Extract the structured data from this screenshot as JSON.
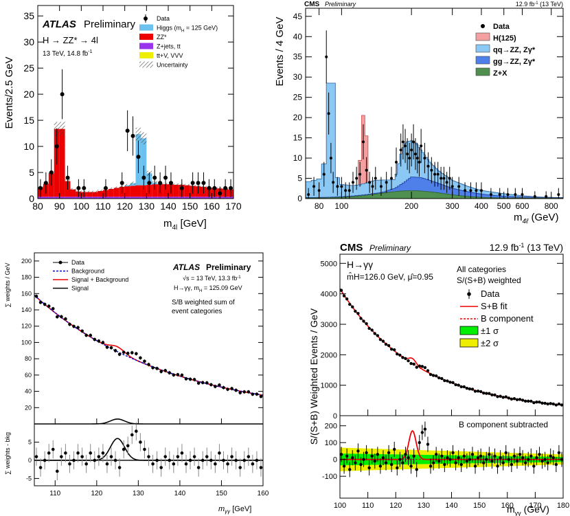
{
  "chart_data": [
    {
      "id": "atlas_4l",
      "type": "bar",
      "experiment": "ATLAS",
      "status": "Preliminary",
      "process": "H → ZZ* → 4l",
      "energy": "13 TeV, 14.8 fb",
      "energy_sup": "-1",
      "xlabel": "m",
      "xlabel_sub": "4l",
      "xlabel_unit": "[GeV]",
      "ylabel": "Events/2.5 GeV",
      "xlim": [
        80,
        170
      ],
      "ylim": [
        0,
        37
      ],
      "xticks": [
        80,
        90,
        100,
        110,
        120,
        130,
        140,
        150,
        160,
        170
      ],
      "yticks": [
        0,
        5,
        10,
        15,
        20,
        25,
        30,
        35
      ],
      "legend": [
        {
          "label": "Data",
          "color": "#000000"
        },
        {
          "label": "Higgs (m",
          "sub": "H",
          "tail": " = 125 GeV)",
          "color": "#6cc1ee"
        },
        {
          "label": "ZZ*",
          "color": "#ee0000"
        },
        {
          "label": "Z+jets, tt",
          "color": "#9933ee"
        },
        {
          "label": "tt+V, VVV",
          "color": "#eeee00"
        },
        {
          "label": "Uncertainty",
          "color": "#555555"
        }
      ],
      "bin_edges_start": 80,
      "bin_width": 2.5,
      "series": [
        {
          "name": "tt+V, VVV",
          "values": [
            0.05,
            0.05,
            0.05,
            0.05,
            0.05,
            0.05,
            0.05,
            0.05,
            0.05,
            0.05,
            0.05,
            0.05,
            0.05,
            0.05,
            0.05,
            0.05,
            0.05,
            0.05,
            0.05,
            0.05,
            0.05,
            0.05,
            0.05,
            0.05,
            0.05,
            0.05,
            0.05,
            0.05,
            0.05,
            0.05,
            0.05,
            0.05,
            0.05,
            0.05,
            0.05,
            0.05
          ]
        },
        {
          "name": "Z+jets, tt",
          "values": [
            0.3,
            0.3,
            0.3,
            0.3,
            0.3,
            0.3,
            0.3,
            0.3,
            0.3,
            0.3,
            0.3,
            0.3,
            0.3,
            0.3,
            0.3,
            0.3,
            0.3,
            0.3,
            0.3,
            0.3,
            0.3,
            0.3,
            0.3,
            0.3,
            0.3,
            0.3,
            0.3,
            0.3,
            0.3,
            0.3,
            0.3,
            0.3,
            0.3,
            0.3,
            0.3,
            0.3
          ]
        },
        {
          "name": "ZZ*",
          "values": [
            1.8,
            2.5,
            4.5,
            13,
            13,
            3,
            1.4,
            1.0,
            0.9,
            0.9,
            0.9,
            1.1,
            1.3,
            1.5,
            1.7,
            1.9,
            2.0,
            2.1,
            2.2,
            2.2,
            2.3,
            2.4,
            2.4,
            2.4,
            2.4,
            2.3,
            2.3,
            2.2,
            2.1,
            2.0,
            1.9,
            1.8,
            1.7,
            1.6,
            1.5,
            1.4
          ]
        },
        {
          "name": "Higgs",
          "values": [
            0,
            0,
            0,
            0,
            0,
            0,
            0,
            0,
            0,
            0,
            0,
            0,
            0,
            0,
            0,
            0,
            0.2,
            0.5,
            9.8,
            9,
            2.2,
            0.3,
            0,
            0,
            0,
            0,
            0,
            0,
            0,
            0,
            0,
            0,
            0,
            0,
            0,
            0
          ]
        }
      ],
      "data": {
        "x": [
          81.25,
          83.75,
          86.25,
          88.75,
          91.25,
          93.75,
          98.75,
          101.25,
          111.25,
          118.75,
          121.25,
          123.75,
          126.25,
          128.75,
          131.25,
          133.75,
          136.25,
          138.75,
          141.25,
          146.25,
          151.25,
          153.75,
          156.25,
          158.75,
          161.25,
          163.75,
          166.25,
          168.75
        ],
        "y": [
          2,
          3,
          5,
          10,
          20,
          4,
          2,
          2,
          2,
          3,
          13,
          12,
          8,
          4,
          3,
          4,
          3,
          4,
          3,
          2,
          3,
          3,
          3,
          2,
          2,
          1,
          2,
          2
        ]
      }
    },
    {
      "id": "cms_4l",
      "type": "bar",
      "experiment": "CMS",
      "status": "Preliminary",
      "lumi": "12.9 fb",
      "lumi_sup": "-1",
      "lumi_tail": " (13 TeV)",
      "xlabel": "m",
      "xlabel_sub": "4ℓ",
      "xlabel_unit": "(GeV)",
      "ylabel": "Events / 4 GeV",
      "xscale": "log",
      "xlim": [
        70,
        900
      ],
      "ylim": [
        0,
        47
      ],
      "xticks": [
        80,
        100,
        200,
        300,
        400,
        500,
        600,
        800
      ],
      "yticks": [
        0,
        5,
        10,
        15,
        20,
        25,
        30,
        35,
        40,
        45
      ],
      "legend": [
        {
          "label": "Data",
          "color": "#000000"
        },
        {
          "label": "H(125)",
          "color": "#f4a0a0"
        },
        {
          "label": "qq→ZZ, Zγ*",
          "color": "#8cc8f4"
        },
        {
          "label": "gg→ZZ, Zγ*",
          "color": "#4f7fe8"
        },
        {
          "label": "Z+X",
          "color": "#4f8f4f"
        }
      ],
      "components": {
        "zx_peak": [
          200,
          1.8
        ],
        "qq_profile": [
          [
            70,
            4
          ],
          [
            82,
            5
          ],
          [
            86,
            12
          ],
          [
            88,
            28.5
          ],
          [
            92,
            28.5
          ],
          [
            94,
            6
          ],
          [
            100,
            3.5
          ],
          [
            110,
            3.2
          ],
          [
            120,
            3.4
          ],
          [
            130,
            4
          ],
          [
            140,
            4.5
          ],
          [
            150,
            4.6
          ],
          [
            160,
            4.6
          ],
          [
            170,
            4.7
          ],
          [
            175,
            8
          ],
          [
            180,
            11
          ],
          [
            185,
            13
          ],
          [
            190,
            14
          ],
          [
            200,
            14.3
          ],
          [
            210,
            13.6
          ],
          [
            220,
            12
          ],
          [
            240,
            9
          ],
          [
            260,
            7
          ],
          [
            300,
            4.5
          ],
          [
            350,
            3
          ],
          [
            400,
            2
          ],
          [
            500,
            1.2
          ],
          [
            600,
            0.7
          ],
          [
            700,
            0.4
          ],
          [
            800,
            0.3
          ],
          [
            900,
            0.2
          ]
        ],
        "gg_profile": [
          [
            70,
            0.1
          ],
          [
            150,
            0.2
          ],
          [
            170,
            0.8
          ],
          [
            185,
            2
          ],
          [
            200,
            3.4
          ],
          [
            220,
            3.3
          ],
          [
            250,
            2.6
          ],
          [
            300,
            1.6
          ],
          [
            400,
            0.8
          ],
          [
            500,
            0.4
          ],
          [
            700,
            0.15
          ],
          [
            900,
            0.1
          ]
        ],
        "higgs": [
          [
            118,
            0
          ],
          [
            121,
            9
          ],
          [
            125,
            19.5
          ],
          [
            129,
            9
          ],
          [
            132,
            0
          ]
        ]
      },
      "data": {
        "x": [
          72,
          76,
          80,
          84,
          86,
          88,
          90,
          92,
          96,
          100,
          104,
          108,
          112,
          116,
          120,
          124,
          128,
          132,
          136,
          140,
          148,
          156,
          164,
          172,
          180,
          184,
          188,
          192,
          196,
          200,
          204,
          208,
          212,
          216,
          220,
          228,
          236,
          244,
          252,
          260,
          268,
          276,
          284,
          292,
          300,
          320,
          340,
          360,
          380,
          400,
          440,
          480,
          520,
          560,
          600,
          680,
          760,
          860
        ],
        "y": [
          1,
          3,
          2,
          6,
          35,
          21,
          10,
          4,
          3,
          3,
          2,
          2,
          4,
          5,
          6,
          14,
          7,
          4,
          3,
          5,
          3,
          4,
          5,
          9,
          12,
          14,
          13,
          11,
          10,
          12,
          14,
          11,
          10,
          9,
          13,
          10,
          8,
          7,
          6,
          6,
          5,
          5,
          4,
          5,
          3,
          3,
          2,
          2,
          2,
          2,
          1,
          1,
          1,
          1,
          1,
          0.5,
          0.5,
          1
        ]
      }
    },
    {
      "id": "atlas_gg",
      "type": "scatter",
      "experiment": "ATLAS",
      "status": "Preliminary",
      "energy": "√s = 13 TeV, 13.3 fb",
      "energy_sup": "-1",
      "process": "H→γγ, m",
      "process_sub": "H",
      "process_tail": " = 125.09 GeV",
      "note1": "S/B weighted sum of",
      "note2": "event categories",
      "xlabel": "m",
      "xlabel_sub": "γγ",
      "xlabel_unit": "[GeV]",
      "ylabel": "∑ weights / GeV",
      "ylabel_bottom": "∑ weights - bkg",
      "xlim": [
        105,
        160
      ],
      "ylim": [
        0,
        210
      ],
      "ylim_bottom": [
        -7,
        10
      ],
      "xticks": [
        110,
        120,
        130,
        140,
        150,
        160
      ],
      "yticks": [
        20,
        40,
        60,
        80,
        100,
        120,
        140,
        160,
        180,
        200
      ],
      "yticks_bottom": [
        -5,
        0,
        5
      ],
      "legend": [
        {
          "label": "Data",
          "color": "#000000"
        },
        {
          "label": "Background",
          "color": "#0000cc"
        },
        {
          "label": "Signal + Background",
          "color": "#ee0000"
        },
        {
          "label": "Signal",
          "color": "#000000"
        }
      ],
      "background": {
        "a": 150,
        "b": 0.031
      },
      "signal": {
        "mean": 125,
        "sigma": 1.7,
        "amp": 6
      },
      "residuals": [
        1,
        -2,
        0,
        2,
        3,
        -3,
        1,
        2,
        -1,
        0,
        2,
        1,
        -1,
        2,
        0,
        1,
        2,
        -1,
        1,
        0,
        -2,
        3,
        4,
        7,
        8,
        5,
        3,
        1,
        -1,
        0,
        -2,
        1,
        0,
        -1,
        1,
        2,
        -1,
        0,
        1,
        -2,
        0,
        1,
        0,
        -1,
        2,
        0,
        -1,
        1,
        0,
        -2,
        0,
        1,
        -1,
        0,
        -2
      ]
    },
    {
      "id": "cms_gg",
      "type": "scatter",
      "experiment": "CMS",
      "status": "Preliminary",
      "lumi": "12.9 fb",
      "lumi_sup": "-1",
      "lumi_tail": " (13 TeV)",
      "process": "H→γγ",
      "fit_params": "m̂H=126.0 GeV, μ̂=0.95",
      "cat1": "All categories",
      "cat2": "S/(S+B) weighted",
      "subtract_note": "B component subtracted",
      "xlabel": "m",
      "xlabel_sub": "γγ",
      "xlabel_unit": "(GeV)",
      "ylabel": "S/(S+B) Weighted Events / GeV",
      "xlim": [
        100,
        180
      ],
      "ylim": [
        0,
        5300
      ],
      "ylim_bottom": [
        -230,
        260
      ],
      "xticks": [
        100,
        110,
        120,
        130,
        140,
        150,
        160,
        170,
        180
      ],
      "yticks": [
        0,
        1000,
        2000,
        3000,
        4000,
        5000
      ],
      "yticks_bottom": [
        -100,
        0,
        100,
        200
      ],
      "legend": [
        {
          "label": "Data",
          "color": "#000000"
        },
        {
          "label": "S+B fit",
          "color": "#ee0000"
        },
        {
          "label": "B component",
          "color": "#ee0000"
        },
        {
          "label": "±1 σ",
          "color": "#00ee00"
        },
        {
          "label": "±2 σ",
          "color": "#eeee00"
        }
      ],
      "background": {
        "a": 4050,
        "b": 0.036,
        "c": 200
      },
      "signal": {
        "mean": 126,
        "sigma": 1.3,
        "amp": 170
      },
      "residuals": [
        30,
        -40,
        20,
        -60,
        10,
        -20,
        50,
        -30,
        0,
        40,
        -50,
        20,
        -10,
        30,
        -40,
        10,
        -20,
        40,
        -30,
        60,
        -50,
        0,
        -20,
        30,
        10,
        -40,
        20,
        -60,
        100,
        160,
        180,
        90,
        -40,
        -20,
        30,
        -10,
        20,
        -30,
        10,
        0,
        40,
        -20,
        10,
        -30,
        20,
        -10,
        0,
        30,
        -40,
        10,
        20,
        -20,
        0,
        30,
        -10,
        20,
        -40,
        10,
        -20,
        40,
        0,
        -30,
        20,
        -10,
        30,
        10,
        -20,
        0,
        20,
        -40,
        10,
        30,
        -10,
        0,
        -20,
        20,
        10,
        -30,
        40,
        0,
        -10
      ]
    }
  ]
}
